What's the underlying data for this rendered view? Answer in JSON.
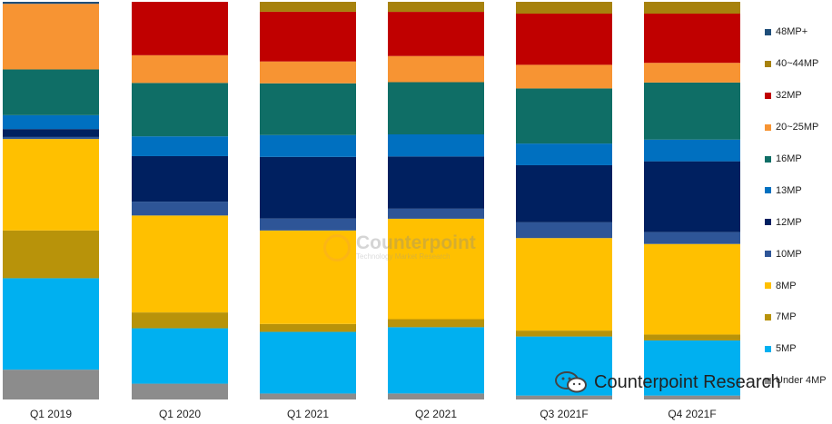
{
  "chart_data": {
    "type": "bar",
    "stacked": true,
    "normalized": true,
    "categories": [
      "Q1 2019",
      "Q1 2020",
      "Q1 2021",
      "Q2 2021",
      "Q3 2021F",
      "Q4 2021F"
    ],
    "series": [
      {
        "name": "Under 4MP",
        "color": "#8c8c8c",
        "values": [
          7.5,
          4.0,
          1.5,
          1.5,
          1.0,
          1.0
        ]
      },
      {
        "name": "5MP",
        "color": "#00b0f0",
        "values": [
          23.0,
          14.0,
          15.5,
          16.5,
          15.0,
          14.0
        ]
      },
      {
        "name": "7MP",
        "color": "#b8930a",
        "values": [
          12.0,
          4.0,
          2.0,
          2.0,
          1.5,
          1.5
        ]
      },
      {
        "name": "8MP",
        "color": "#ffc000",
        "values": [
          23.0,
          24.5,
          23.5,
          25.0,
          23.5,
          23.0
        ]
      },
      {
        "name": "10MP",
        "color": "#2e5597",
        "values": [
          0.5,
          3.5,
          3.0,
          2.5,
          4.0,
          3.0
        ]
      },
      {
        "name": "12MP",
        "color": "#002060",
        "values": [
          2.0,
          11.5,
          15.5,
          13.0,
          14.5,
          18.0
        ]
      },
      {
        "name": "13MP",
        "color": "#0070c0",
        "values": [
          3.5,
          5.0,
          5.5,
          5.5,
          5.5,
          5.5
        ]
      },
      {
        "name": "16MP",
        "color": "#0f6e66",
        "values": [
          11.5,
          13.5,
          13.0,
          13.0,
          14.0,
          14.5
        ]
      },
      {
        "name": "20~25MP",
        "color": "#f79433",
        "values": [
          16.5,
          7.0,
          5.5,
          6.5,
          6.0,
          5.0
        ]
      },
      {
        "name": "32MP",
        "color": "#c00000",
        "values": [
          0.0,
          13.5,
          12.5,
          11.0,
          13.0,
          12.5
        ]
      },
      {
        "name": "40~44MP",
        "color": "#a7820d",
        "values": [
          0.0,
          0.0,
          2.5,
          2.5,
          3.0,
          3.0
        ]
      },
      {
        "name": "48MP+",
        "color": "#1f4e79",
        "values": [
          0.5,
          0.0,
          0.0,
          0.0,
          0.0,
          0.0
        ]
      }
    ]
  },
  "watermark": {
    "title": "Counterpoint",
    "subtitle": "Technology Market Research"
  },
  "brand": {
    "label": "Counterpoint Research"
  }
}
